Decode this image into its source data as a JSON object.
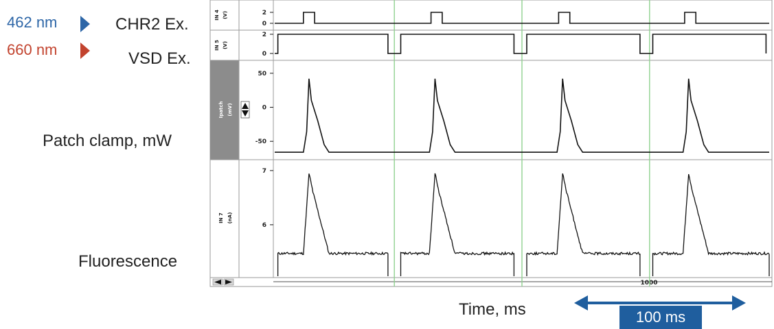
{
  "legend": {
    "blue": {
      "label": "462 nm",
      "color": "#2d66a7"
    },
    "red": {
      "label": "660 nm",
      "color": "#c2432e"
    }
  },
  "row_labels": {
    "chr2": "CHR2 Ex.",
    "vsd": "VSD Ex.",
    "patch": "Patch clamp, mW",
    "fluor": "Fluorescence"
  },
  "x_axis": {
    "label": "Time, ms",
    "tick_label": "1000",
    "scale_bar_label": "100 ms"
  },
  "colors": {
    "trace": "#111111",
    "marker": "#8fd18f",
    "scale_bar": "#1f5e9e",
    "channel_panel": "#8c8c8c"
  },
  "chart_data": {
    "type": "line",
    "x_unit": "ms",
    "x_range": [
      800,
      1110
    ],
    "sweep_markers_x": [
      875,
      955,
      1035
    ],
    "panels": [
      {
        "id": "in4",
        "channel": "IN 4",
        "unit": "(V)",
        "yticks": [
          "2",
          "0"
        ],
        "ylim": [
          0,
          2
        ],
        "pulses_x": [
          [
            818,
            825
          ],
          [
            898,
            905
          ],
          [
            978,
            985
          ],
          [
            1057,
            1064
          ]
        ],
        "high": 2,
        "low": 0
      },
      {
        "id": "in5",
        "channel": "IN 5",
        "unit": "(V)",
        "yticks": [
          "2",
          "0"
        ],
        "ylim": [
          0,
          2
        ],
        "off_intervals_x": [
          [
            871,
            879
          ],
          [
            950,
            958
          ],
          [
            1029,
            1037
          ]
        ],
        "high": 2,
        "low": 0
      },
      {
        "id": "ipatch",
        "channel": "Ipatch",
        "unit": "(mV)",
        "yticks": [
          "50",
          "0",
          "-50"
        ],
        "ylim": [
          -75,
          65
        ],
        "baseline": -66,
        "peak": 42,
        "spike_onset_x": [
          818,
          897,
          977,
          1056
        ]
      },
      {
        "id": "in7",
        "channel": "IN 7",
        "unit": "(nA)",
        "yticks": [
          "7",
          "6"
        ],
        "ylim": [
          5.05,
          7.15
        ],
        "baseline": 5.47,
        "peak": 6.95,
        "segments_x": [
          [
            802,
            871
          ],
          [
            879,
            950
          ],
          [
            958,
            1029
          ],
          [
            1037,
            1110
          ]
        ]
      }
    ]
  }
}
